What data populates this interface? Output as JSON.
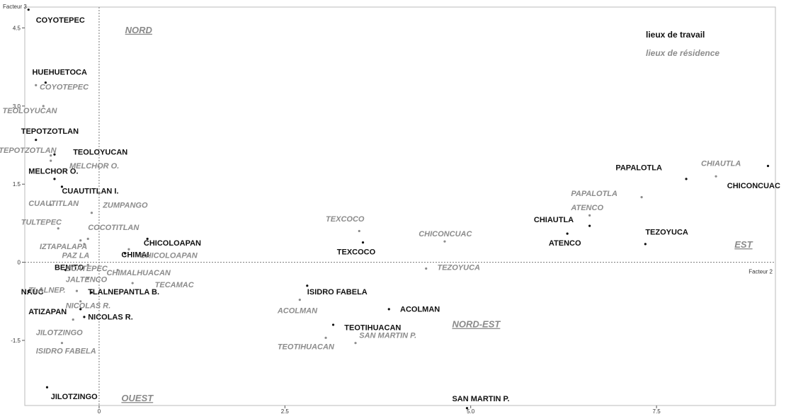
{
  "chart_data": {
    "type": "scatter",
    "x_axis_title": "Facteur 2",
    "y_axis_title": "Facteur 3",
    "xlim": [
      -1.0,
      9.1
    ],
    "ylim": [
      -2.75,
      4.9
    ],
    "x_ticks": [
      {
        "v": 0,
        "label": "0"
      },
      {
        "v": 2.5,
        "label": "2.5"
      },
      {
        "v": 5.0,
        "label": "5.0"
      },
      {
        "v": 7.5,
        "label": "7.5"
      }
    ],
    "y_ticks": [
      {
        "v": 4.5,
        "label": "4.5"
      },
      {
        "v": 3.0,
        "label": "3.0"
      },
      {
        "v": 1.5,
        "label": "1.5"
      },
      {
        "v": 0,
        "label": "0"
      },
      {
        "v": -1.5,
        "label": "-1.5"
      }
    ],
    "legend": {
      "work": "lieux de travail",
      "residence": "lieux de résidence"
    },
    "regions": [
      {
        "name": "NORD",
        "x": 0.35,
        "y": 4.4
      },
      {
        "name": "EST",
        "x": 8.55,
        "y": 0.28
      },
      {
        "name": "NORD-EST",
        "x": 4.75,
        "y": -1.25
      },
      {
        "name": "OUEST",
        "x": 0.3,
        "y": -2.67
      }
    ],
    "series": [
      {
        "name": "lieux de travail",
        "points": [
          {
            "label": "COYOTEPEC",
            "x": -0.95,
            "y": 4.85,
            "lx": -0.85,
            "ly": 4.6
          },
          {
            "label": "HUEHUETOCA",
            "x": -0.72,
            "y": 3.45,
            "lx": -0.9,
            "ly": 3.6
          },
          {
            "label": "TEPOTZOTLAN",
            "x": -0.85,
            "y": 2.35,
            "lx": -1.05,
            "ly": 2.47
          },
          {
            "label": "TEOLOYUCAN",
            "x": -0.6,
            "y": 2.07,
            "lx": -0.35,
            "ly": 2.07
          },
          {
            "label": "MELCHOR O.",
            "x": -0.6,
            "y": 1.6,
            "lx": -0.95,
            "ly": 1.7
          },
          {
            "label": "CUAUTITLAN I.",
            "x": -0.5,
            "y": 1.45,
            "lx": -0.5,
            "ly": 1.32
          },
          {
            "label": "CHICOLOAPAN",
            "x": 0.65,
            "y": 0.45,
            "lx": 0.6,
            "ly": 0.32
          },
          {
            "label": "CHIMAI",
            "x": 0.35,
            "y": 0.17,
            "lx": 0.3,
            "ly": 0.1
          },
          {
            "label": "BENITO",
            "x": -0.45,
            "y": -0.15,
            "lx": -0.6,
            "ly": -0.15
          },
          {
            "label": "NAUC",
            "x": -0.95,
            "y": -0.55,
            "lx": -1.05,
            "ly": -0.62
          },
          {
            "label": "TLALNEPANTLA B.",
            "x": -0.1,
            "y": -0.58,
            "lx": -0.15,
            "ly": -0.62
          },
          {
            "label": "ATIZAPAN",
            "x": -0.25,
            "y": -0.9,
            "lx": -0.95,
            "ly": -1.0
          },
          {
            "label": "NICOLAS R.",
            "x": -0.2,
            "y": -1.05,
            "lx": -0.15,
            "ly": -1.1
          },
          {
            "label": "JILOTZINGO",
            "x": -0.7,
            "y": -2.4,
            "lx": -0.65,
            "ly": -2.63
          },
          {
            "label": "ISIDRO FABELA",
            "x": 2.8,
            "y": -0.45,
            "lx": 2.8,
            "ly": -0.62
          },
          {
            "label": "ACOLMAN",
            "x": 3.9,
            "y": -0.9,
            "lx": 4.05,
            "ly": -0.95
          },
          {
            "label": "TEOTIHUACAN",
            "x": 3.15,
            "y": -1.2,
            "lx": 3.3,
            "ly": -1.3
          },
          {
            "label": "TEXCOCO",
            "x": 3.55,
            "y": 0.38,
            "lx": 3.2,
            "ly": 0.15
          },
          {
            "label": "SAN MARTIN P.",
            "x": 4.95,
            "y": -2.8,
            "lx": 4.75,
            "ly": -2.67
          },
          {
            "label": "PAPALOTLA",
            "x": 7.9,
            "y": 1.6,
            "lx": 6.95,
            "ly": 1.77
          },
          {
            "label": "CHIAUTLA",
            "x": 6.3,
            "y": 0.55,
            "lx": 5.85,
            "ly": 0.77
          },
          {
            "label": "ATENCO",
            "x": 6.6,
            "y": 0.7,
            "lx": 6.05,
            "ly": 0.32
          },
          {
            "label": "TEZOYUCA",
            "x": 7.35,
            "y": 0.35,
            "lx": 7.35,
            "ly": 0.53
          },
          {
            "label": "CHICONCUAC",
            "x": 9.0,
            "y": 1.85,
            "lx": 8.45,
            "ly": 1.42
          }
        ]
      },
      {
        "name": "lieux de résidence",
        "points": [
          {
            "label": "COYOTEPEC",
            "x": -0.85,
            "y": 3.4,
            "lx": -0.8,
            "ly": 3.32
          },
          {
            "label": "TEOLOYUCAN",
            "x": -0.75,
            "y": 3.0,
            "lx": -1.3,
            "ly": 2.86
          },
          {
            "label": "TEPOTZOTLAN",
            "x": -0.65,
            "y": 2.05,
            "lx": -1.35,
            "ly": 2.1
          },
          {
            "label": "MELCHOR O.",
            "x": -0.65,
            "y": 1.95,
            "lx": -0.4,
            "ly": 1.8
          },
          {
            "label": "CUAUTITLAN",
            "x": -0.65,
            "y": 1.1,
            "lx": -0.95,
            "ly": 1.08
          },
          {
            "label": "ZUMPANGO",
            "x": -0.1,
            "y": 0.95,
            "lx": 0.05,
            "ly": 1.05
          },
          {
            "label": "TULTEPEC",
            "x": -0.55,
            "y": 0.65,
            "lx": -1.05,
            "ly": 0.72
          },
          {
            "label": "COCOTITLAN",
            "x": -0.15,
            "y": 0.45,
            "lx": -0.15,
            "ly": 0.62
          },
          {
            "label": "IZTAPALAPA",
            "x": -0.25,
            "y": 0.42,
            "lx": -0.8,
            "ly": 0.25
          },
          {
            "label": "PAZ LA",
            "x": -0.2,
            "y": 0.35,
            "lx": -0.5,
            "ly": 0.08
          },
          {
            "label": "CHICOLOAPAN",
            "x": 0.4,
            "y": 0.25,
            "lx": 0.55,
            "ly": 0.08
          },
          {
            "label": "ECATEPEC",
            "x": -0.15,
            "y": -0.05,
            "lx": -0.45,
            "ly": -0.17
          },
          {
            "label": "CHIMALHUACAN",
            "x": 0.25,
            "y": -0.15,
            "lx": 0.1,
            "ly": -0.25
          },
          {
            "label": "JALTENCO",
            "x": -0.15,
            "y": -0.3,
            "lx": -0.45,
            "ly": -0.38
          },
          {
            "label": "TECAMAC",
            "x": 0.45,
            "y": -0.4,
            "lx": 0.75,
            "ly": -0.48
          },
          {
            "label": "TLALNEP.",
            "x": -0.3,
            "y": -0.55,
            "lx": -0.95,
            "ly": -0.58
          },
          {
            "label": "NICOLAS R.",
            "x": -0.25,
            "y": -0.75,
            "lx": -0.45,
            "ly": -0.88
          },
          {
            "label": "JILOTZINGO",
            "x": -0.35,
            "y": -1.1,
            "lx": -0.85,
            "ly": -1.4
          },
          {
            "label": "ISIDRO FABELA",
            "x": -0.5,
            "y": -1.55,
            "lx": -0.85,
            "ly": -1.75
          },
          {
            "label": "ACOLMAN",
            "x": 2.7,
            "y": -0.72,
            "lx": 2.4,
            "ly": -0.98
          },
          {
            "label": "TEOTIHUACAN",
            "x": 3.05,
            "y": -1.45,
            "lx": 2.4,
            "ly": -1.67
          },
          {
            "label": "SAN MARTIN P.",
            "x": 3.45,
            "y": -1.55,
            "lx": 3.5,
            "ly": -1.45
          },
          {
            "label": "TEXCOCO",
            "x": 3.5,
            "y": 0.6,
            "lx": 3.05,
            "ly": 0.78
          },
          {
            "label": "CHICONCUAC",
            "x": 4.65,
            "y": 0.4,
            "lx": 4.3,
            "ly": 0.5
          },
          {
            "label": "TEZOYUCA",
            "x": 4.4,
            "y": -0.12,
            "lx": 4.55,
            "ly": -0.15
          },
          {
            "label": "PAPALOTLA",
            "x": 7.3,
            "y": 1.25,
            "lx": 6.35,
            "ly": 1.27
          },
          {
            "label": "ATENCO",
            "x": 6.6,
            "y": 0.9,
            "lx": 6.35,
            "ly": 1.0
          },
          {
            "label": "CHIAUTLA",
            "x": 8.3,
            "y": 1.65,
            "lx": 8.1,
            "ly": 1.85
          }
        ]
      }
    ]
  }
}
